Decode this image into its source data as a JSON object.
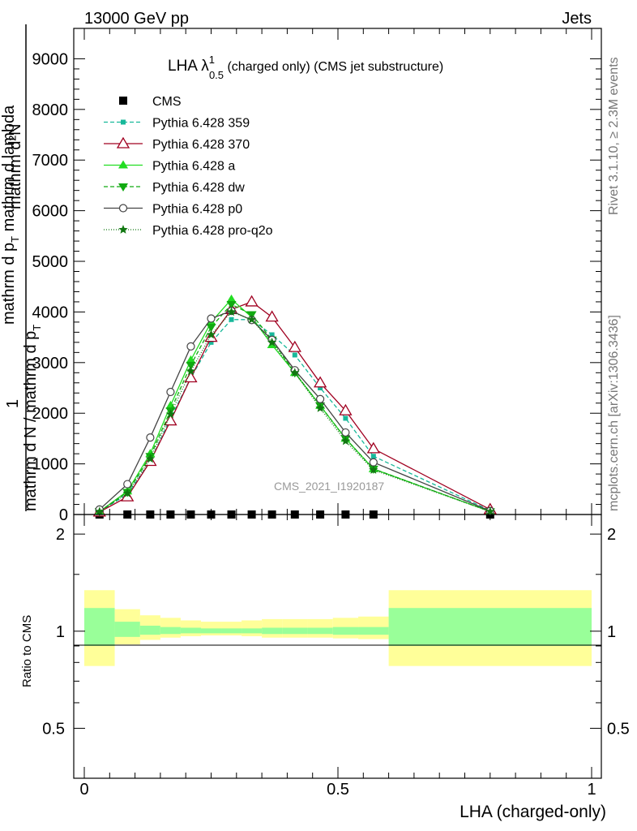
{
  "header": {
    "left": "13000 GeV pp",
    "right": "Jets"
  },
  "main_title": {
    "prefix": "LHA λ",
    "sup": "1",
    "sub": "0.5",
    "suffix": " (charged only) (CMS jet substructure)"
  },
  "ylabel": {
    "top": "mathrm d²N",
    "top_den": "mathrm d p",
    "top_den_sub": "T",
    "top_den_end": " mathrm d lambda",
    "one": "1",
    "bottom": "mathrm d N / mathrm d p",
    "bottom_sub": "T"
  },
  "side": {
    "rivet": "Rivet 3.1.10, ≥ 2.3M events",
    "mcplots": "mcplots.cern.ch [arXiv:1306.3436]"
  },
  "watermark": "CMS_2021_I1920187",
  "ratio_label": "Ratio to CMS",
  "xlabel": "LHA (charged-only)",
  "colors": {
    "cms": "#000000",
    "p359": "#17b89a",
    "p370": "#a00020",
    "pa": "#22dd22",
    "pdw": "#11aa11",
    "pp0": "#444444",
    "pq2o": "#117711",
    "band_inner": "#99ff99",
    "band_outer": "#ffff99"
  },
  "chart_data": [
    {
      "type": "line",
      "panel": "main",
      "ylim": [
        0,
        9600
      ],
      "xlim": [
        -0.02,
        1.0
      ],
      "y_ticks": [
        0,
        1000,
        2000,
        3000,
        4000,
        5000,
        6000,
        7000,
        8000,
        9000
      ],
      "y_tick_labels": [
        "0",
        "1000",
        "2000",
        "3000",
        "4000",
        "5000",
        "6000",
        "7000",
        "8000",
        "9000"
      ],
      "x": [
        0.03,
        0.085,
        0.13,
        0.17,
        0.21,
        0.25,
        0.29,
        0.33,
        0.37,
        0.415,
        0.465,
        0.515,
        0.57,
        0.8
      ],
      "series": [
        {
          "name": "CMS",
          "key": "cms",
          "marker": "square",
          "dash": "",
          "values": [
            0,
            0,
            0,
            0,
            0,
            0,
            0,
            0,
            0,
            0,
            0,
            0,
            0,
            0
          ]
        },
        {
          "name": "Pythia 6.428 359",
          "key": "p359",
          "marker": "smallsquare",
          "dash": "5,3",
          "values": [
            60,
            400,
            1050,
            1900,
            2700,
            3400,
            3850,
            3850,
            3550,
            3150,
            2500,
            1900,
            1150,
            80
          ]
        },
        {
          "name": "Pythia 6.428 370",
          "key": "p370",
          "marker": "triangle-open",
          "dash": "",
          "values": [
            50,
            350,
            1050,
            1850,
            2700,
            3500,
            4050,
            4200,
            3900,
            3300,
            2600,
            2050,
            1300,
            100
          ]
        },
        {
          "name": "Pythia 6.428 a",
          "key": "pa",
          "marker": "triangle",
          "dash": "",
          "values": [
            60,
            460,
            1200,
            2150,
            3050,
            3800,
            4250,
            3900,
            3350,
            2800,
            2150,
            1500,
            900,
            60
          ]
        },
        {
          "name": "Pythia 6.428 dw",
          "key": "pdw",
          "marker": "triangle-down",
          "dash": "5,3",
          "values": [
            60,
            440,
            1150,
            2050,
            2950,
            3700,
            4150,
            3950,
            3450,
            2800,
            2150,
            1500,
            900,
            60
          ]
        },
        {
          "name": "Pythia 6.428 p0",
          "key": "pp0",
          "marker": "circle-open",
          "dash": "",
          "values": [
            100,
            600,
            1520,
            2420,
            3320,
            3870,
            4020,
            3840,
            3450,
            2850,
            2280,
            1620,
            1030,
            70
          ]
        },
        {
          "name": "Pythia 6.428 pro-q2o",
          "key": "pq2o",
          "marker": "star",
          "dash": "1,2",
          "values": [
            60,
            420,
            1100,
            1980,
            2830,
            3550,
            4000,
            3850,
            3400,
            2800,
            2100,
            1450,
            880,
            60
          ]
        }
      ]
    },
    {
      "type": "area",
      "panel": "ratio",
      "ylim": [
        0.35,
        2.3
      ],
      "y_ticks": [
        0.5,
        1,
        2
      ],
      "y_tick_labels": [
        "0.5",
        "1",
        "2"
      ],
      "x_ticks": [
        0,
        0.5,
        1
      ],
      "x_tick_labels": [
        "0",
        "0.5",
        "1"
      ],
      "bins": [
        {
          "x0": 0.0,
          "x1": 0.06,
          "inner": [
            0.9,
            1.18
          ],
          "outer": [
            0.78,
            1.34
          ]
        },
        {
          "x0": 0.06,
          "x1": 0.11,
          "inner": [
            0.96,
            1.07
          ],
          "outer": [
            0.91,
            1.17
          ]
        },
        {
          "x0": 0.11,
          "x1": 0.15,
          "inner": [
            0.975,
            1.04
          ],
          "outer": [
            0.94,
            1.12
          ]
        },
        {
          "x0": 0.15,
          "x1": 0.19,
          "inner": [
            0.98,
            1.03
          ],
          "outer": [
            0.955,
            1.1
          ]
        },
        {
          "x0": 0.19,
          "x1": 0.23,
          "inner": [
            0.985,
            1.025
          ],
          "outer": [
            0.965,
            1.08
          ]
        },
        {
          "x0": 0.23,
          "x1": 0.27,
          "inner": [
            0.985,
            1.02
          ],
          "outer": [
            0.97,
            1.07
          ]
        },
        {
          "x0": 0.27,
          "x1": 0.31,
          "inner": [
            0.985,
            1.02
          ],
          "outer": [
            0.97,
            1.07
          ]
        },
        {
          "x0": 0.31,
          "x1": 0.35,
          "inner": [
            0.985,
            1.02
          ],
          "outer": [
            0.965,
            1.08
          ]
        },
        {
          "x0": 0.35,
          "x1": 0.39,
          "inner": [
            0.98,
            1.025
          ],
          "outer": [
            0.955,
            1.09
          ]
        },
        {
          "x0": 0.39,
          "x1": 0.44,
          "inner": [
            0.98,
            1.025
          ],
          "outer": [
            0.955,
            1.09
          ]
        },
        {
          "x0": 0.44,
          "x1": 0.49,
          "inner": [
            0.98,
            1.025
          ],
          "outer": [
            0.955,
            1.09
          ]
        },
        {
          "x0": 0.49,
          "x1": 0.54,
          "inner": [
            0.975,
            1.03
          ],
          "outer": [
            0.95,
            1.1
          ]
        },
        {
          "x0": 0.54,
          "x1": 0.6,
          "inner": [
            0.975,
            1.03
          ],
          "outer": [
            0.945,
            1.11
          ]
        },
        {
          "x0": 0.6,
          "x1": 1.0,
          "inner": [
            0.9,
            1.18
          ],
          "outer": [
            0.78,
            1.34
          ]
        }
      ]
    }
  ]
}
